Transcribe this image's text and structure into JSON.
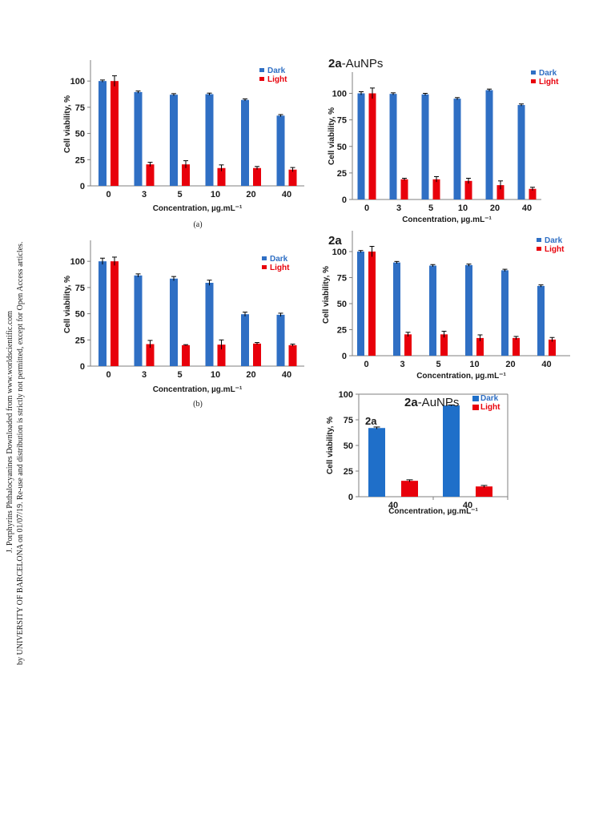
{
  "side_note": {
    "line1": "J. Porphyrins Phthalocyanines Downloaded from www.worldscientific.com",
    "line2": "by UNIVERSITY OF BARCELONA on 01/07/19. Re-use and distribution is strictly not permitted, except for Open Access articles."
  },
  "panel_labels": {
    "a": "(a)",
    "b": "(b)"
  },
  "colors": {
    "dark": "#2f6fc4",
    "light": "#e8000b",
    "dark_inset": "#1f6fc9"
  },
  "chart_data": [
    {
      "id": "top-left",
      "type": "bar",
      "title_bold": "",
      "title_rest": "",
      "categories": [
        "0",
        "3",
        "5",
        "10",
        "20",
        "40"
      ],
      "series": [
        {
          "name": "Dark",
          "values": [
            100,
            89.5,
            87,
            87.5,
            82,
            67
          ],
          "errors": [
            1,
            1,
            1,
            1,
            1,
            1
          ]
        },
        {
          "name": "Light",
          "values": [
            100,
            20.5,
            20.5,
            17,
            17,
            15.5
          ],
          "errors": [
            5,
            2,
            3.5,
            3,
            1.5,
            2
          ]
        }
      ],
      "xlabel": "Concentration, µg.mL⁻¹",
      "ylabel": "Cell viability, %",
      "yticks": [
        0,
        25,
        50,
        75,
        100
      ],
      "ylim": [
        0,
        120
      ],
      "legend": "top-right"
    },
    {
      "id": "top-right",
      "type": "bar",
      "title_bold": "2a",
      "title_rest": "-AuNPs",
      "categories": [
        "0",
        "3",
        "5",
        "10",
        "20",
        "40"
      ],
      "series": [
        {
          "name": "Dark",
          "values": [
            100,
            99.5,
            99,
            95,
            103,
            89
          ],
          "errors": [
            1.5,
            1,
            1,
            1,
            1,
            1
          ]
        },
        {
          "name": "Light",
          "values": [
            100,
            19,
            19,
            17.5,
            13.5,
            10
          ],
          "errors": [
            5,
            1,
            2.5,
            2.5,
            4,
            1.5
          ]
        }
      ],
      "xlabel": "Concentration, µg.mL⁻¹",
      "ylabel": "Cell viability, %",
      "yticks": [
        0,
        25,
        50,
        75,
        100
      ],
      "ylim": [
        0,
        120
      ],
      "legend": "top-right"
    },
    {
      "id": "bottom-left",
      "type": "bar",
      "title_bold": "",
      "title_rest": "",
      "categories": [
        "0",
        "3",
        "5",
        "10",
        "20",
        "40"
      ],
      "series": [
        {
          "name": "Dark",
          "values": [
            100,
            86.5,
            83.5,
            79.5,
            49.5,
            49
          ],
          "errors": [
            3,
            1.5,
            2,
            2.5,
            2,
            1.5
          ]
        },
        {
          "name": "Light",
          "values": [
            100,
            21,
            20,
            20.5,
            21.5,
            20
          ],
          "errors": [
            4,
            3.5,
            0.5,
            4.5,
            1,
            1
          ]
        }
      ],
      "xlabel": "Concentration, µg.mL⁻¹",
      "ylabel": "Cell viability, %",
      "yticks": [
        0,
        25,
        50,
        75,
        100
      ],
      "ylim": [
        0,
        120
      ],
      "legend": "top-right"
    },
    {
      "id": "bottom-right",
      "type": "bar",
      "title_bold": "2a",
      "title_rest": "",
      "categories": [
        "0",
        "3",
        "5",
        "10",
        "20",
        "40"
      ],
      "series": [
        {
          "name": "Dark",
          "values": [
            100,
            89.5,
            86.5,
            87,
            82,
            67
          ],
          "errors": [
            1,
            1,
            1,
            1,
            1,
            1
          ]
        },
        {
          "name": "Light",
          "values": [
            100,
            20.5,
            20.5,
            17,
            17,
            15.5
          ],
          "errors": [
            5,
            2,
            3,
            3,
            1.5,
            2
          ]
        }
      ],
      "xlabel": "Concentration, µg.mL⁻¹",
      "ylabel": "Cell viability, %",
      "yticks": [
        0,
        25,
        50,
        75,
        100
      ],
      "ylim": [
        0,
        120
      ],
      "legend": "top-right"
    },
    {
      "id": "inset",
      "type": "bar",
      "title_bold": "2a",
      "title_rest": "-AuNPs",
      "group_labels": [
        "2a",
        ""
      ],
      "categories": [
        "40",
        "40"
      ],
      "series": [
        {
          "name": "Dark",
          "values": [
            67,
            89
          ],
          "errors": [
            1,
            0.5
          ]
        },
        {
          "name": "Light",
          "values": [
            15.5,
            10
          ],
          "errors": [
            1,
            1
          ]
        }
      ],
      "xlabel": "Concentration, µg.mL⁻¹",
      "ylabel": "Cell viability, %",
      "yticks": [
        0,
        25,
        50,
        75,
        100
      ],
      "ylim": [
        0,
        100
      ],
      "legend": "top-right"
    }
  ]
}
